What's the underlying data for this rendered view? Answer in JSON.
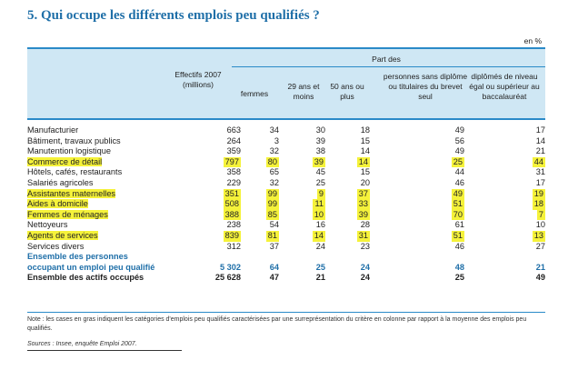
{
  "title": "5. Qui occupe les différents emplois peu qualifiés ?",
  "unit": "en %",
  "header": {
    "effectifs": "Effectifs 2007 (millions)",
    "part_des": "Part des",
    "cols": [
      "femmes",
      "29 ans et moins",
      "50 ans ou plus",
      "personnes sans diplôme ou titulaires du brevet seul",
      "diplômés de niveau égal ou supérieur au baccalauréat"
    ]
  },
  "rows": [
    {
      "label": "Manufacturier",
      "effectifs": "663",
      "vals": [
        "34",
        "30",
        "18",
        "49",
        "17"
      ],
      "highlight": false,
      "hl": []
    },
    {
      "label": "Bâtiment, travaux publics",
      "effectifs": "264",
      "vals": [
        "3",
        "39",
        "15",
        "56",
        "14"
      ],
      "highlight": false,
      "hl": []
    },
    {
      "label": "Manutention logistique",
      "effectifs": "359",
      "vals": [
        "32",
        "38",
        "14",
        "49",
        "21"
      ],
      "highlight": false,
      "hl": []
    },
    {
      "label": "Commerce de détail",
      "effectifs": "797",
      "vals": [
        "80",
        "39",
        "14",
        "25",
        "44"
      ],
      "highlight": true,
      "hl": [
        0,
        1,
        2,
        3,
        4,
        5
      ]
    },
    {
      "label": "Hôtels, cafés, restaurants",
      "effectifs": "358",
      "vals": [
        "65",
        "45",
        "15",
        "44",
        "31"
      ],
      "highlight": false,
      "hl": []
    },
    {
      "label": "Salariés agricoles",
      "effectifs": "229",
      "vals": [
        "32",
        "25",
        "20",
        "46",
        "17"
      ],
      "highlight": false,
      "hl": []
    },
    {
      "label": "Assistantes maternelles",
      "effectifs": "351",
      "vals": [
        "99",
        "9",
        "37",
        "49",
        "19"
      ],
      "highlight": true,
      "hl": [
        0,
        1,
        2,
        3,
        4,
        5
      ]
    },
    {
      "label": "Aides à domicile",
      "effectifs": "508",
      "vals": [
        "99",
        "11",
        "33",
        "51",
        "18"
      ],
      "highlight": true,
      "hl": [
        0,
        1,
        2,
        3,
        4,
        5
      ]
    },
    {
      "label": "Femmes de ménages",
      "effectifs": "388",
      "vals": [
        "85",
        "10",
        "39",
        "70",
        "7"
      ],
      "highlight": true,
      "hl": [
        0,
        1,
        2,
        3,
        4,
        5
      ]
    },
    {
      "label": "Nettoyeurs",
      "effectifs": "238",
      "vals": [
        "54",
        "16",
        "28",
        "61",
        "10"
      ],
      "highlight": false,
      "hl": []
    },
    {
      "label": "Agents de services",
      "effectifs": "839",
      "vals": [
        "81",
        "14",
        "31",
        "51",
        "13"
      ],
      "highlight": true,
      "hl": [
        0,
        1,
        2,
        3,
        4,
        5
      ]
    },
    {
      "label": "Services divers",
      "effectifs": "312",
      "vals": [
        "37",
        "24",
        "23",
        "46",
        "27"
      ],
      "highlight": false,
      "hl": []
    }
  ],
  "total1": {
    "label_line1": "Ensemble des personnes",
    "label_line2": "occupant un emploi peu qualifié",
    "effectifs": "5 302",
    "vals": [
      "64",
      "25",
      "24",
      "48",
      "21"
    ]
  },
  "total2": {
    "label": "Ensemble des actifs occupés",
    "effectifs": "25 628",
    "vals": [
      "47",
      "21",
      "24",
      "25",
      "49"
    ]
  },
  "note": "Note : les cases en gras indiquent les catégories d'emplois peu qualifiés caractérisées par une surreprésentation du critère en colonne par rapport à la moyenne des emplois peu qualifiés.",
  "source": "Sources : Insee, enquête Emploi 2007.",
  "colors": {
    "accent": "#1f6fa8",
    "header_bg": "#cfe7f4",
    "highlight": "#f5f23a"
  }
}
